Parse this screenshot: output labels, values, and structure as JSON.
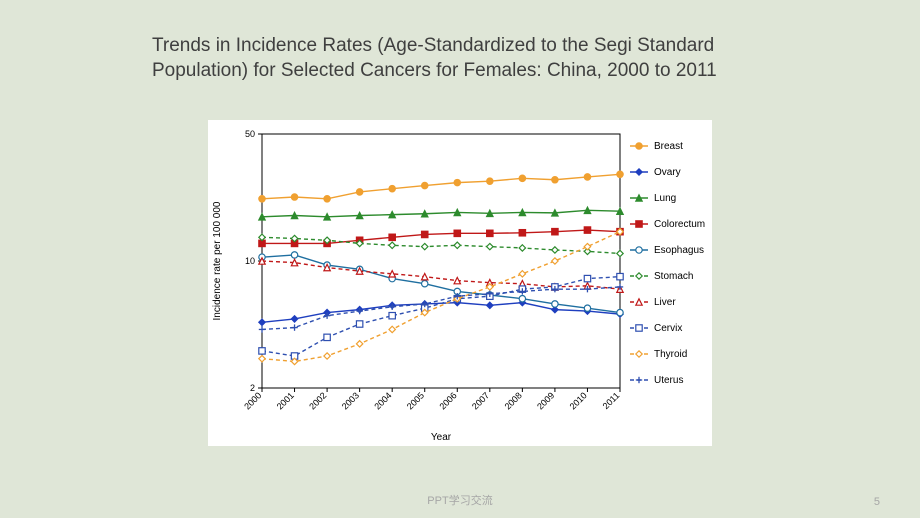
{
  "slide": {
    "title": "Trends in Incidence Rates (Age-Standardized to the Segi Standard Population) for Selected Cancers for\nFemales: China, 2000 to 2011",
    "footer": "PPT学习交流",
    "page_number": "5",
    "background_color": "#dfe6d7"
  },
  "chart": {
    "type": "line",
    "scale": "log",
    "background_color": "#ffffff",
    "x_label": "Year",
    "y_label": "Incidence rate per 100 000",
    "x_categories": [
      "2000",
      "2001",
      "2002",
      "2003",
      "2004",
      "2005",
      "2006",
      "2007",
      "2008",
      "2009",
      "2010",
      "2011"
    ],
    "y_ticks": [
      2,
      10,
      50
    ],
    "y_tick_labels": [
      "2",
      "10",
      "50"
    ],
    "xlim": [
      0,
      11
    ],
    "ylim": [
      2,
      50
    ],
    "axis_color": "#000000",
    "tick_fontsize": 9,
    "axis_title_fontsize": 10,
    "legend_fontsize": 10,
    "marker_size": 3.2,
    "line_width": 1.4,
    "series": [
      {
        "name": "Breast",
        "color": "#f0a030",
        "dash": "solid",
        "marker": "circle",
        "values": [
          22.0,
          22.5,
          22.0,
          24.0,
          25.0,
          26.0,
          27.0,
          27.5,
          28.5,
          28.0,
          29.0,
          30.0
        ]
      },
      {
        "name": "Ovary",
        "color": "#1f3fbf",
        "dash": "solid",
        "marker": "diamond",
        "values": [
          4.6,
          4.8,
          5.2,
          5.4,
          5.7,
          5.8,
          5.9,
          5.7,
          5.9,
          5.4,
          5.3,
          5.1
        ]
      },
      {
        "name": "Lung",
        "color": "#2d8b2d",
        "dash": "solid",
        "marker": "triangle",
        "values": [
          17.5,
          17.8,
          17.5,
          17.8,
          18.0,
          18.2,
          18.5,
          18.3,
          18.5,
          18.4,
          19.0,
          18.8
        ]
      },
      {
        "name": "Colorectum",
        "color": "#c01818",
        "dash": "solid",
        "marker": "square",
        "values": [
          12.5,
          12.5,
          12.5,
          13.0,
          13.5,
          14.0,
          14.2,
          14.2,
          14.3,
          14.5,
          14.8,
          14.5
        ]
      },
      {
        "name": "Esophagus",
        "color": "#1f6fa0",
        "dash": "solid",
        "marker": "circle-open",
        "values": [
          10.5,
          10.8,
          9.5,
          9.0,
          8.0,
          7.5,
          6.8,
          6.5,
          6.2,
          5.8,
          5.5,
          5.2
        ]
      },
      {
        "name": "Stomach",
        "color": "#2d8b2d",
        "dash": "dashed",
        "marker": "diamond-open",
        "values": [
          13.5,
          13.3,
          13.0,
          12.5,
          12.2,
          12.0,
          12.2,
          12.0,
          11.8,
          11.5,
          11.3,
          11.0
        ]
      },
      {
        "name": "Liver",
        "color": "#c01818",
        "dash": "dashed",
        "marker": "triangle-open",
        "values": [
          10.0,
          9.8,
          9.2,
          8.8,
          8.5,
          8.2,
          7.8,
          7.6,
          7.5,
          7.2,
          7.3,
          7.0
        ]
      },
      {
        "name": "Cervix",
        "color": "#2e4fb0",
        "dash": "dashed",
        "marker": "square-open",
        "values": [
          3.2,
          3.0,
          3.8,
          4.5,
          5.0,
          5.5,
          6.2,
          6.4,
          7.0,
          7.2,
          8.0,
          8.2
        ]
      },
      {
        "name": "Thyroid",
        "color": "#f0a030",
        "dash": "dashed",
        "marker": "diamond-open",
        "values": [
          2.9,
          2.8,
          3.0,
          3.5,
          4.2,
          5.2,
          6.2,
          7.2,
          8.5,
          10.0,
          12.0,
          14.5
        ]
      },
      {
        "name": "Uterus",
        "color": "#2e4fb0",
        "dash": "dashed",
        "marker": "plus",
        "values": [
          4.2,
          4.3,
          5.0,
          5.3,
          5.6,
          5.8,
          6.4,
          6.6,
          6.8,
          7.0,
          7.0,
          7.2
        ]
      }
    ]
  }
}
